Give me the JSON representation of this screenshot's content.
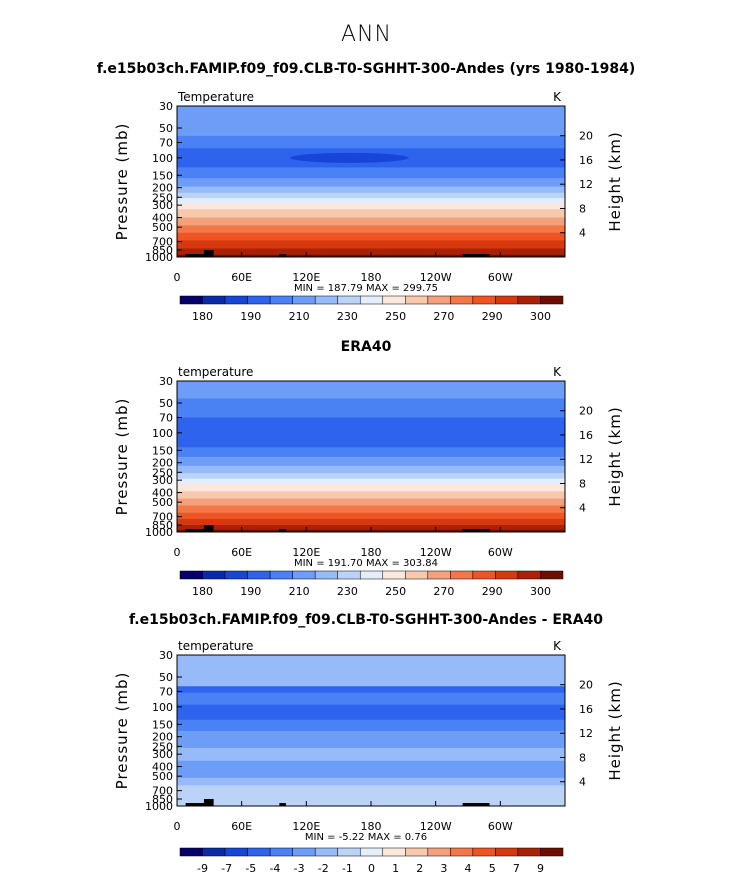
{
  "page": {
    "title": "ANN"
  },
  "chart_data": [
    {
      "type": "heatmap",
      "title": "f.e15b03ch.FAMIP.f09_f09.CLB-T0-SGHHT-300-Andes (yrs 1980-1984)",
      "left_label": "Temperature",
      "units": "K",
      "ylabel": "Pressure (mb)",
      "ylabel_right": "Height (km)",
      "y_ticks": [
        "30",
        "50",
        "70",
        "100",
        "150",
        "200",
        "250",
        "300",
        "400",
        "500",
        "700",
        "850",
        "1000"
      ],
      "y_right_ticks": [
        "20",
        "16",
        "12",
        "8",
        "4"
      ],
      "x_ticks": [
        "0",
        "60E",
        "120E",
        "180",
        "120W",
        "60W"
      ],
      "minmax": "MIN = 187.79  MAX = 299.75",
      "colorbar_labels": [
        "180",
        "190",
        "210",
        "230",
        "250",
        "270",
        "290",
        "300"
      ],
      "colors": [
        "#08006a",
        "#0a2aa8",
        "#1745d8",
        "#2e63ee",
        "#4a82f5",
        "#6e9df8",
        "#97baf8",
        "#bcd3f8",
        "#e4eefb",
        "#fbe7dc",
        "#f8c8ac",
        "#f5a07c",
        "#f27848",
        "#ef5424",
        "#d7380e",
        "#a92207",
        "#6d0e02"
      ],
      "bands": [
        {
          "p": 30,
          "c": 5
        },
        {
          "p": 40,
          "c": 5
        },
        {
          "p": 60,
          "c": 4
        },
        {
          "p": 80,
          "c": 3
        },
        {
          "p": 125,
          "c": 4
        },
        {
          "p": 160,
          "c": 5
        },
        {
          "p": 195,
          "c": 6
        },
        {
          "p": 225,
          "c": 7
        },
        {
          "p": 255,
          "c": 8
        },
        {
          "p": 290,
          "c": 9
        },
        {
          "p": 330,
          "c": 10
        },
        {
          "p": 400,
          "c": 11
        },
        {
          "p": 480,
          "c": 12
        },
        {
          "p": 570,
          "c": 13
        },
        {
          "p": 680,
          "c": 14
        },
        {
          "p": 820,
          "c": 15
        },
        {
          "p": 950,
          "c": 16
        }
      ],
      "blob": {
        "p": 100,
        "lon_from": 105,
        "lon_to": 215,
        "c": 2
      }
    },
    {
      "type": "heatmap",
      "title": "ERA40",
      "left_label": "temperature",
      "units": "K",
      "ylabel": "Pressure (mb)",
      "ylabel_right": "Height (km)",
      "y_ticks": [
        "30",
        "50",
        "70",
        "100",
        "150",
        "200",
        "250",
        "300",
        "400",
        "500",
        "700",
        "850",
        "1000"
      ],
      "y_right_ticks": [
        "20",
        "16",
        "12",
        "8",
        "4"
      ],
      "x_ticks": [
        "0",
        "60E",
        "120E",
        "180",
        "120W",
        "60W"
      ],
      "minmax": "MIN = 191.70  MAX = 303.84",
      "colorbar_labels": [
        "180",
        "190",
        "210",
        "230",
        "250",
        "270",
        "290",
        "300"
      ],
      "colors": [
        "#08006a",
        "#0a2aa8",
        "#1745d8",
        "#2e63ee",
        "#4a82f5",
        "#6e9df8",
        "#97baf8",
        "#bcd3f8",
        "#e4eefb",
        "#fbe7dc",
        "#f8c8ac",
        "#f5a07c",
        "#f27848",
        "#ef5424",
        "#d7380e",
        "#a92207",
        "#6d0e02"
      ],
      "bands": [
        {
          "p": 30,
          "c": 5
        },
        {
          "p": 45,
          "c": 4
        },
        {
          "p": 70,
          "c": 3
        },
        {
          "p": 140,
          "c": 4
        },
        {
          "p": 175,
          "c": 5
        },
        {
          "p": 215,
          "c": 6
        },
        {
          "p": 255,
          "c": 7
        },
        {
          "p": 290,
          "c": 8
        },
        {
          "p": 330,
          "c": 9
        },
        {
          "p": 390,
          "c": 10
        },
        {
          "p": 460,
          "c": 11
        },
        {
          "p": 540,
          "c": 12
        },
        {
          "p": 640,
          "c": 13
        },
        {
          "p": 740,
          "c": 14
        },
        {
          "p": 850,
          "c": 15
        },
        {
          "p": 950,
          "c": 16
        }
      ],
      "blob": null
    },
    {
      "type": "heatmap",
      "title": "f.e15b03ch.FAMIP.f09_f09.CLB-T0-SGHHT-300-Andes - ERA40",
      "left_label": "temperature",
      "units": "K",
      "ylabel": "Pressure (mb)",
      "ylabel_right": "Height (km)",
      "y_ticks": [
        "30",
        "50",
        "70",
        "100",
        "150",
        "200",
        "250",
        "300",
        "400",
        "500",
        "700",
        "850",
        "1000"
      ],
      "y_right_ticks": [
        "20",
        "16",
        "12",
        "8",
        "4"
      ],
      "x_ticks": [
        "0",
        "60E",
        "120E",
        "180",
        "120W",
        "60W"
      ],
      "minmax": "MIN =   -5.22  MAX =    0.76",
      "colorbar_labels": [
        "-9",
        "-7",
        "-5",
        "-4",
        "-3",
        "-2",
        "-1",
        "0",
        "1",
        "2",
        "3",
        "4",
        "5",
        "7",
        "9"
      ],
      "colors": [
        "#08006a",
        "#0a2aa8",
        "#1745d8",
        "#2e63ee",
        "#4a82f5",
        "#6e9df8",
        "#97baf8",
        "#bcd3f8",
        "#e4eefb",
        "#fbe7dc",
        "#f8c8ac",
        "#f5a07c",
        "#f27848",
        "#ef5424",
        "#d7380e",
        "#a92207",
        "#6d0e02"
      ],
      "bands": [
        {
          "p": 30,
          "c": 6
        },
        {
          "p": 62,
          "c": 3
        },
        {
          "p": 72,
          "c": 4
        },
        {
          "p": 95,
          "c": 3
        },
        {
          "p": 135,
          "c": 4
        },
        {
          "p": 175,
          "c": 5
        },
        {
          "p": 260,
          "c": 6
        },
        {
          "p": 350,
          "c": 5
        },
        {
          "p": 520,
          "c": 6
        },
        {
          "p": 620,
          "c": 7
        }
      ],
      "blob": null
    }
  ]
}
